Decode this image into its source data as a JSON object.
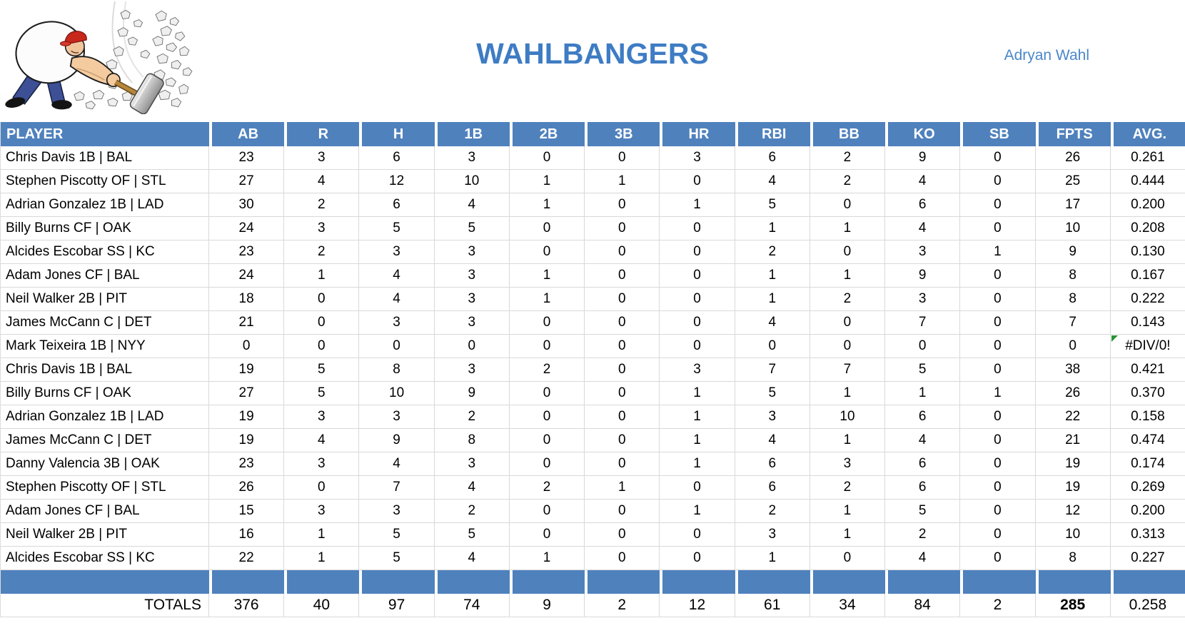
{
  "team": {
    "title": "WAHLBANGERS",
    "owner": "Adryan Wahl"
  },
  "logo": {
    "icon": "man-smashing-rocks-with-hammer"
  },
  "colors": {
    "header_bg": "#4f81bd",
    "title_blue": "#3e7cc4",
    "owner_blue": "#4a87c9",
    "gridline": "#d9d9d9",
    "error_green": "#2a9235",
    "cap_red": "#c8281c",
    "pants_blue": "#3d5096",
    "handle_tan": "#b5863b"
  },
  "table": {
    "columns": [
      "PLAYER",
      "AB",
      "R",
      "H",
      "1B",
      "2B",
      "3B",
      "HR",
      "RBI",
      "BB",
      "KO",
      "SB",
      "FPTS",
      "AVG."
    ],
    "rows": [
      {
        "player": "Chris Davis 1B | BAL",
        "stats": [
          "23",
          "3",
          "6",
          "3",
          "0",
          "0",
          "3",
          "6",
          "2",
          "9",
          "0",
          "26",
          "0.261"
        ],
        "error": false
      },
      {
        "player": "Stephen Piscotty OF | STL",
        "stats": [
          "27",
          "4",
          "12",
          "10",
          "1",
          "1",
          "0",
          "4",
          "2",
          "4",
          "0",
          "25",
          "0.444"
        ],
        "error": false
      },
      {
        "player": "Adrian Gonzalez 1B | LAD",
        "stats": [
          "30",
          "2",
          "6",
          "4",
          "1",
          "0",
          "1",
          "5",
          "0",
          "6",
          "0",
          "17",
          "0.200"
        ],
        "error": false
      },
      {
        "player": "Billy Burns CF | OAK",
        "stats": [
          "24",
          "3",
          "5",
          "5",
          "0",
          "0",
          "0",
          "1",
          "1",
          "4",
          "0",
          "10",
          "0.208"
        ],
        "error": false
      },
      {
        "player": "Alcides Escobar SS | KC",
        "stats": [
          "23",
          "2",
          "3",
          "3",
          "0",
          "0",
          "0",
          "2",
          "0",
          "3",
          "1",
          "9",
          "0.130"
        ],
        "error": false
      },
      {
        "player": "Adam Jones CF | BAL",
        "stats": [
          "24",
          "1",
          "4",
          "3",
          "1",
          "0",
          "0",
          "1",
          "1",
          "9",
          "0",
          "8",
          "0.167"
        ],
        "error": false
      },
      {
        "player": "Neil Walker 2B | PIT",
        "stats": [
          "18",
          "0",
          "4",
          "3",
          "1",
          "0",
          "0",
          "1",
          "2",
          "3",
          "0",
          "8",
          "0.222"
        ],
        "error": false
      },
      {
        "player": "James McCann C | DET",
        "stats": [
          "21",
          "0",
          "3",
          "3",
          "0",
          "0",
          "0",
          "4",
          "0",
          "7",
          "0",
          "7",
          "0.143"
        ],
        "error": false
      },
      {
        "player": "Mark Teixeira 1B | NYY",
        "stats": [
          "0",
          "0",
          "0",
          "0",
          "0",
          "0",
          "0",
          "0",
          "0",
          "0",
          "0",
          "0",
          "#DIV/0!"
        ],
        "error": true
      },
      {
        "player": "Chris Davis 1B | BAL",
        "stats": [
          "19",
          "5",
          "8",
          "3",
          "2",
          "0",
          "3",
          "7",
          "7",
          "5",
          "0",
          "38",
          "0.421"
        ],
        "error": false
      },
      {
        "player": "Billy Burns CF | OAK",
        "stats": [
          "27",
          "5",
          "10",
          "9",
          "0",
          "0",
          "1",
          "5",
          "1",
          "1",
          "1",
          "26",
          "0.370"
        ],
        "error": false
      },
      {
        "player": "Adrian Gonzalez 1B | LAD",
        "stats": [
          "19",
          "3",
          "3",
          "2",
          "0",
          "0",
          "1",
          "3",
          "10",
          "6",
          "0",
          "22",
          "0.158"
        ],
        "error": false
      },
      {
        "player": "James McCann C | DET",
        "stats": [
          "19",
          "4",
          "9",
          "8",
          "0",
          "0",
          "1",
          "4",
          "1",
          "4",
          "0",
          "21",
          "0.474"
        ],
        "error": false
      },
      {
        "player": "Danny Valencia 3B | OAK",
        "stats": [
          "23",
          "3",
          "4",
          "3",
          "0",
          "0",
          "1",
          "6",
          "3",
          "6",
          "0",
          "19",
          "0.174"
        ],
        "error": false
      },
      {
        "player": "Stephen Piscotty OF | STL",
        "stats": [
          "26",
          "0",
          "7",
          "4",
          "2",
          "1",
          "0",
          "6",
          "2",
          "6",
          "0",
          "19",
          "0.269"
        ],
        "error": false
      },
      {
        "player": "Adam Jones CF | BAL",
        "stats": [
          "15",
          "3",
          "3",
          "2",
          "0",
          "0",
          "1",
          "2",
          "1",
          "5",
          "0",
          "12",
          "0.200"
        ],
        "error": false
      },
      {
        "player": "Neil Walker 2B | PIT",
        "stats": [
          "16",
          "1",
          "5",
          "5",
          "0",
          "0",
          "0",
          "3",
          "1",
          "2",
          "0",
          "10",
          "0.313"
        ],
        "error": false
      },
      {
        "player": "Alcides Escobar SS | KC",
        "stats": [
          "22",
          "1",
          "5",
          "4",
          "1",
          "0",
          "0",
          "1",
          "0",
          "4",
          "0",
          "8",
          "0.227"
        ],
        "error": false
      }
    ],
    "totals": {
      "label": "TOTALS",
      "stats": [
        "376",
        "40",
        "97",
        "74",
        "9",
        "2",
        "12",
        "61",
        "34",
        "84",
        "2",
        "285",
        "0.258"
      ],
      "bold_stat_index": 11
    }
  }
}
